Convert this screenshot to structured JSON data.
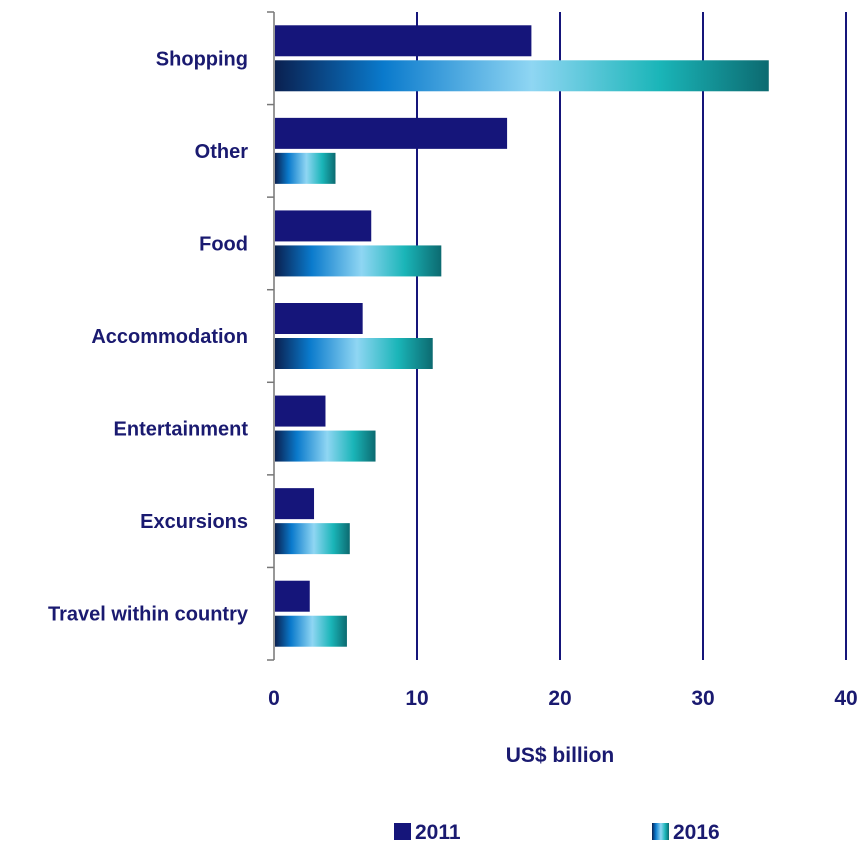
{
  "chart_data": {
    "type": "bar",
    "orientation": "horizontal",
    "categories": [
      "Shopping",
      "Other",
      "Food",
      "Accommodation",
      "Entertainment",
      "Excursions",
      "Travel within country"
    ],
    "series": [
      {
        "name": "2011",
        "values": [
          18.0,
          16.3,
          6.8,
          6.2,
          3.6,
          2.8,
          2.5
        ]
      },
      {
        "name": "2016",
        "values": [
          34.6,
          4.3,
          11.7,
          11.1,
          7.1,
          5.3,
          5.1
        ]
      }
    ],
    "xlabel": "US$ billion",
    "ylabel": "",
    "xlim": [
      0,
      40
    ],
    "xticks": [
      "0",
      "10",
      "20",
      "30",
      "40"
    ],
    "grid": "vertical",
    "legend_position": "bottom",
    "colors": {
      "series_2011": "#15157a",
      "series_2016_gradient": [
        "#0a2050",
        "#0a7acc",
        "#8fd6f3",
        "#1ab5b8",
        "#0c6a70"
      ],
      "gridline": "#15157a",
      "axis": "#777777",
      "text": "#1a1a70"
    }
  }
}
